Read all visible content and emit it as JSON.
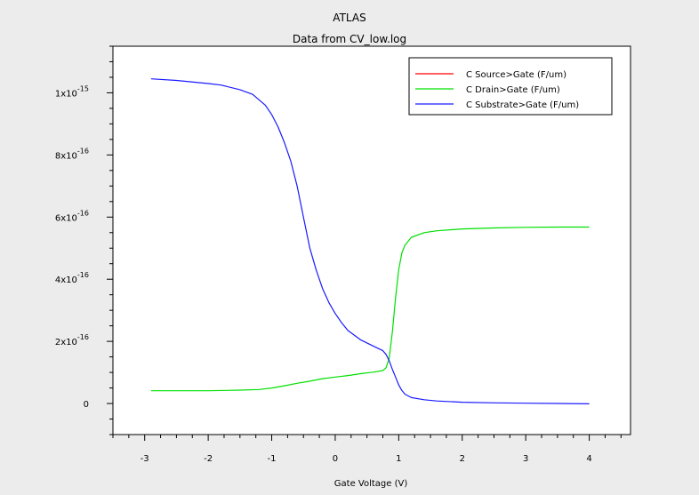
{
  "chart_data": {
    "type": "line",
    "title": "ATLAS",
    "subtitle": "Data from CV_low.log",
    "xlabel": "Gate Voltage (V)",
    "ylabel": "",
    "xlim": [
      -3.5,
      4.65
    ],
    "ylim": [
      -1e-16,
      1.15e-15
    ],
    "x_ticks": [
      -3,
      -2,
      -1,
      0,
      1,
      2,
      3,
      4
    ],
    "y_ticks": [
      {
        "value": 0,
        "mantissa": "0",
        "exp": ""
      },
      {
        "value": 2e-16,
        "mantissa": "2x10",
        "exp": "-16"
      },
      {
        "value": 4e-16,
        "mantissa": "4x10",
        "exp": "-16"
      },
      {
        "value": 6e-16,
        "mantissa": "6x10",
        "exp": "-16"
      },
      {
        "value": 8e-16,
        "mantissa": "8x10",
        "exp": "-16"
      },
      {
        "value": 1e-15,
        "mantissa": "1x10",
        "exp": "-15"
      }
    ],
    "grid": false,
    "legend_position": "top-right",
    "series": [
      {
        "name": "C Source>Gate (F/um)",
        "color": "#ff0000",
        "x": [],
        "y": []
      },
      {
        "name": "C Drain>Gate (F/um)",
        "color": "#00e000",
        "x": [
          -2.9,
          -2.0,
          -1.5,
          -1.2,
          -1.0,
          -0.8,
          -0.6,
          -0.4,
          -0.2,
          0.0,
          0.2,
          0.4,
          0.6,
          0.75,
          0.8,
          0.85,
          0.9,
          0.95,
          1.0,
          1.05,
          1.1,
          1.2,
          1.4,
          1.6,
          2.0,
          2.5,
          3.0,
          3.5,
          4.0
        ],
        "y": [
          4.1e-17,
          4.1e-17,
          4.3e-17,
          4.5e-17,
          5e-17,
          5.7e-17,
          6.5e-17,
          7.2e-17,
          8e-17,
          8.5e-17,
          9e-17,
          9.6e-17,
          1.01e-16,
          1.06e-16,
          1.15e-16,
          1.45e-16,
          2.3e-16,
          3.4e-16,
          4.3e-16,
          4.85e-16,
          5.1e-16,
          5.35e-16,
          5.5e-16,
          5.56e-16,
          5.62e-16,
          5.65e-16,
          5.67e-16,
          5.68e-16,
          5.68e-16
        ]
      },
      {
        "name": "C Substrate>Gate (F/um)",
        "color": "#1a1aff",
        "x": [
          -2.9,
          -2.5,
          -2.0,
          -1.8,
          -1.5,
          -1.3,
          -1.1,
          -1.0,
          -0.9,
          -0.8,
          -0.7,
          -0.6,
          -0.5,
          -0.4,
          -0.3,
          -0.2,
          -0.1,
          0.0,
          0.1,
          0.2,
          0.4,
          0.6,
          0.75,
          0.8,
          0.85,
          0.9,
          0.95,
          1.0,
          1.05,
          1.1,
          1.2,
          1.4,
          1.6,
          2.0,
          2.5,
          3.0,
          3.5,
          4.0
        ],
        "y": [
          1.045e-15,
          1.04e-15,
          1.03e-15,
          1.025e-15,
          1.01e-15,
          9.95e-16,
          9.6e-16,
          9.3e-16,
          8.9e-16,
          8.4e-16,
          7.8e-16,
          7e-16,
          6e-16,
          5e-16,
          4.3e-16,
          3.7e-16,
          3.25e-16,
          2.9e-16,
          2.6e-16,
          2.35e-16,
          2.05e-16,
          1.85e-16,
          1.7e-16,
          1.58e-16,
          1.38e-16,
          1.1e-16,
          8.5e-17,
          6e-17,
          4.2e-17,
          3e-17,
          1.9e-17,
          1.2e-17,
          8e-18,
          4e-18,
          2e-18,
          1e-18,
          0.0,
          -1e-18
        ]
      }
    ]
  }
}
